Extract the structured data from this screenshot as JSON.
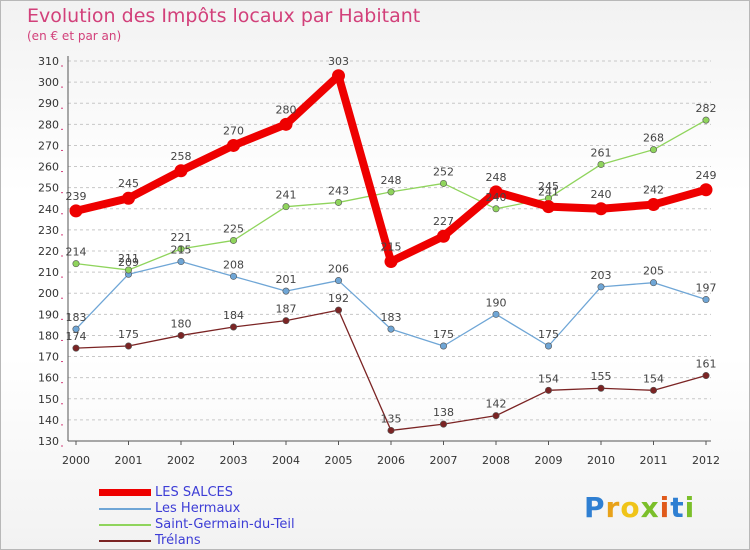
{
  "header": {
    "title": "Evolution des Impôts locaux par Habitant",
    "subtitle": "(en € et par an)"
  },
  "colors": {
    "title": "#d2407a",
    "axis_marks": "#d2407a",
    "grid": "#c8c8c8"
  },
  "chart_data": {
    "type": "line",
    "title": "Evolution des Impôts locaux par Habitant",
    "subtitle": "(en € et par an)",
    "xlabel": "",
    "ylabel": "",
    "x": [
      "2000",
      "2001",
      "2002",
      "2003",
      "2004",
      "2005",
      "2006",
      "2007",
      "2008",
      "2009",
      "2010",
      "2011",
      "2012"
    ],
    "ylim": [
      130,
      310
    ],
    "yticks": [
      130,
      140,
      150,
      160,
      170,
      180,
      190,
      200,
      210,
      220,
      230,
      240,
      250,
      260,
      270,
      280,
      290,
      300,
      310
    ],
    "grid": true,
    "legend_position": "bottom-left",
    "series": [
      {
        "name": "LES SALCES",
        "color": "#ee0000",
        "values": [
          239,
          245,
          258,
          270,
          280,
          303,
          215,
          227,
          248,
          241,
          240,
          242,
          249
        ]
      },
      {
        "name": "Les Hermaux",
        "color": "#6fa6d6",
        "values": [
          183,
          209,
          215,
          208,
          201,
          206,
          183,
          175,
          190,
          175,
          203,
          205,
          197
        ]
      },
      {
        "name": "Saint-Germain-du-Teil",
        "color": "#8fd45c",
        "values": [
          214,
          211,
          221,
          225,
          241,
          243,
          248,
          252,
          240,
          245,
          261,
          268,
          282
        ]
      },
      {
        "name": "Trélans",
        "color": "#7b2424",
        "values": [
          174,
          175,
          180,
          184,
          187,
          192,
          135,
          138,
          142,
          154,
          155,
          154,
          161
        ]
      }
    ]
  },
  "legend": {
    "items": [
      {
        "label": "LES SALCES",
        "color": "#ee0000"
      },
      {
        "label": "Les Hermaux",
        "color": "#6fa6d6"
      },
      {
        "label": "Saint-Germain-du-Teil",
        "color": "#8fd45c"
      },
      {
        "label": "Trélans",
        "color": "#7b2424"
      }
    ],
    "text_color": "#3d3dd6"
  },
  "logo": {
    "letters": [
      "P",
      "r",
      "o",
      "x",
      "i",
      "t",
      "i"
    ],
    "colors": [
      "#2f7fd2",
      "#e8a21a",
      "#f0c419",
      "#7bbf2a",
      "#e05a1b",
      "#2f7fd2",
      "#7bbf2a"
    ]
  }
}
